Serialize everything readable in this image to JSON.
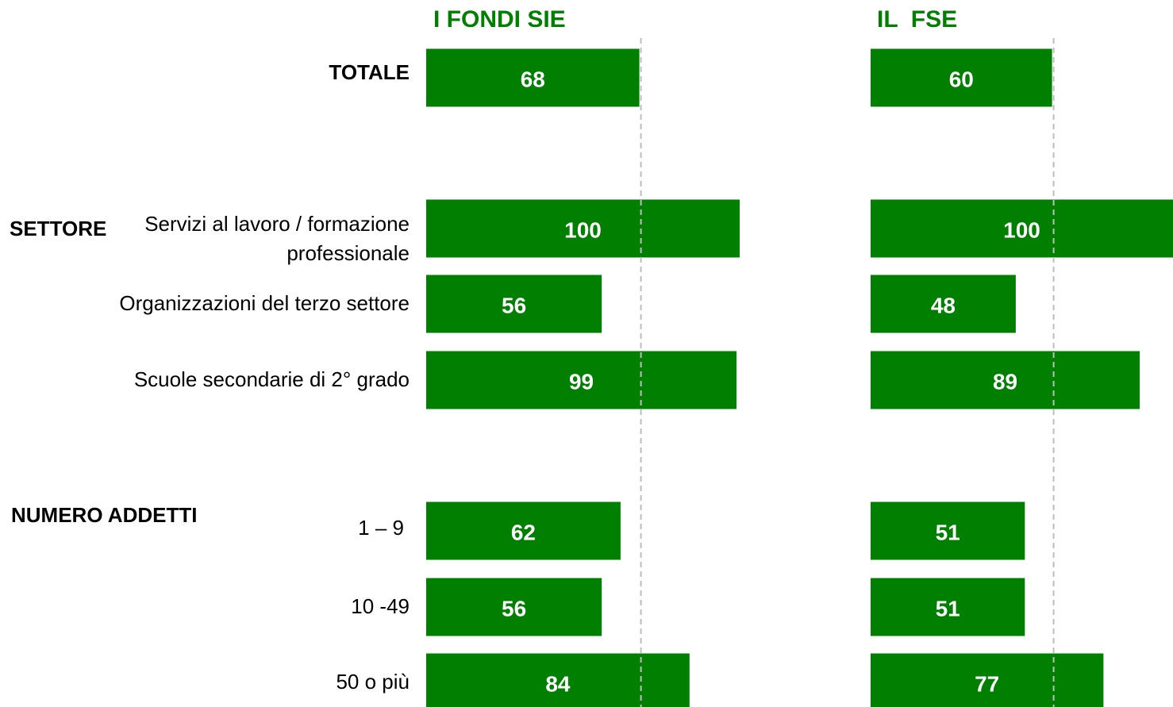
{
  "chart_data": [
    {
      "type": "bar",
      "title": "I FONDI SIE",
      "categories": [
        "TOTALE",
        "Servizi al lavoro / formazione professionale",
        "Organizzazioni del terzo settore",
        "Scuole secondarie di 2° grado",
        "1 – 9",
        "10 -49",
        "50 o più"
      ],
      "groups": [
        "SETTORE",
        "NUMERO ADDETTI"
      ],
      "values": [
        68,
        100,
        56,
        99,
        62,
        56,
        84
      ],
      "color": "#007f00",
      "xlim": [
        0,
        100
      ]
    },
    {
      "type": "bar",
      "title": "IL  FSE",
      "values": [
        60,
        100,
        48,
        89,
        51,
        51,
        77
      ],
      "color": "#007f00",
      "xlim": [
        0,
        100
      ]
    }
  ]
}
